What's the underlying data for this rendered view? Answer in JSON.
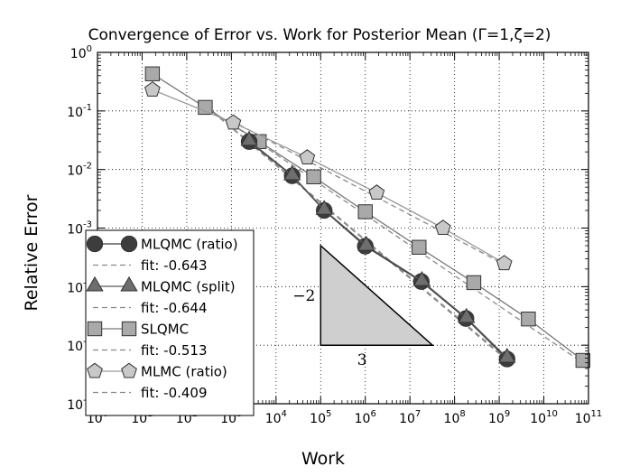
{
  "chart_data": {
    "type": "line",
    "title": "Convergence of Error vs. Work for Posterior Mean (Γ=1,ζ=2)",
    "xlabel": "Work",
    "ylabel": "Relative Error",
    "x_scale": "log",
    "y_scale": "log",
    "xlim": [
      1,
      100000000000
    ],
    "ylim": [
      1e-06,
      1
    ],
    "grid": true,
    "legend_position": "lower-left",
    "x_ticks": [
      {
        "value": 1,
        "base": "10",
        "exp": "0"
      },
      {
        "value": 10,
        "base": "10",
        "exp": "1"
      },
      {
        "value": 100,
        "base": "10",
        "exp": "2"
      },
      {
        "value": 1000,
        "base": "10",
        "exp": "3"
      },
      {
        "value": 10000,
        "base": "10",
        "exp": "4"
      },
      {
        "value": 100000,
        "base": "10",
        "exp": "5"
      },
      {
        "value": 1000000,
        "base": "10",
        "exp": "6"
      },
      {
        "value": 10000000,
        "base": "10",
        "exp": "7"
      },
      {
        "value": 100000000,
        "base": "10",
        "exp": "8"
      },
      {
        "value": 1000000000,
        "base": "10",
        "exp": "9"
      },
      {
        "value": 10000000000,
        "base": "10",
        "exp": "10"
      },
      {
        "value": 100000000000,
        "base": "10",
        "exp": "11"
      }
    ],
    "y_ticks": [
      {
        "value": 1e-06,
        "base": "10",
        "exp": "-6"
      },
      {
        "value": 1e-05,
        "base": "10",
        "exp": "-5"
      },
      {
        "value": 0.0001,
        "base": "10",
        "exp": "-4"
      },
      {
        "value": 0.001,
        "base": "10",
        "exp": "-3"
      },
      {
        "value": 0.01,
        "base": "10",
        "exp": "-2"
      },
      {
        "value": 0.1,
        "base": "10",
        "exp": "-1"
      },
      {
        "value": 1,
        "base": "10",
        "exp": "0"
      }
    ],
    "series": [
      {
        "name": "MLQMC (ratio)",
        "marker": "circle",
        "color": "#3a3a3a",
        "fill": "#3d3d3d",
        "x": [
          2500,
          23000,
          120000,
          1000000,
          18000000,
          180000000,
          1500000000
        ],
        "y": [
          0.03,
          0.0078,
          0.002,
          0.00049,
          0.000122,
          2.85e-05,
          5.8e-06
        ]
      },
      {
        "name": "fit: -0.643",
        "style": "dashed",
        "color": "#8a8a8a",
        "x": [
          270,
          1500000000
        ],
        "y": [
          0.12,
          5.5e-06
        ]
      },
      {
        "name": "MLQMC (split)",
        "marker": "triangle",
        "color": "#5a5a5a",
        "fill": "#6e6e6e",
        "x": [
          2500,
          23000,
          120000,
          1050000,
          18500000,
          185000000,
          1500000000
        ],
        "y": [
          0.031,
          0.008,
          0.00205,
          0.0005,
          0.000125,
          2.92e-05,
          6.1e-06
        ]
      },
      {
        "name": "fit: -0.644",
        "style": "dashed",
        "color": "#8a8a8a",
        "x": [
          270,
          1500000000
        ],
        "y": [
          0.123,
          5.8e-06
        ]
      },
      {
        "name": "SLQMC",
        "marker": "square",
        "color": "#7a7a7a",
        "fill": "#a9a9a9",
        "x": [
          17,
          260,
          4200,
          70000,
          1000000,
          16000000,
          270000000,
          4500000000,
          75000000000
        ],
        "y": [
          0.43,
          0.115,
          0.03,
          0.0075,
          0.0019,
          0.00047,
          0.000117,
          2.8e-05,
          5.5e-06
        ]
      },
      {
        "name": "fit: -0.513",
        "style": "dashed",
        "color": "#8a8a8a",
        "x": [
          1000,
          75000000000
        ],
        "y": [
          0.06,
          5e-06
        ]
      },
      {
        "name": "MLMC (ratio)",
        "marker": "pentagon",
        "color": "#9a9a9a",
        "fill": "#c8c8c8",
        "x": [
          17,
          1100,
          50000,
          1800000,
          55000000,
          1300000000
        ],
        "y": [
          0.23,
          0.063,
          0.016,
          0.004,
          0.001,
          0.00025
        ]
      },
      {
        "name": "fit: -0.409",
        "style": "dashed",
        "color": "#8a8a8a",
        "x": [
          1000,
          1300000000
        ],
        "y": [
          0.068,
          0.00024
        ]
      }
    ],
    "slope_triangle": {
      "vertices": [
        {
          "x": 100000,
          "y": 1e-05
        },
        {
          "x": 100000,
          "y": 0.0005
        },
        {
          "x": 32000000,
          "y": 1e-05
        }
      ],
      "vertical_label": "−2",
      "horizontal_label": "3"
    }
  }
}
